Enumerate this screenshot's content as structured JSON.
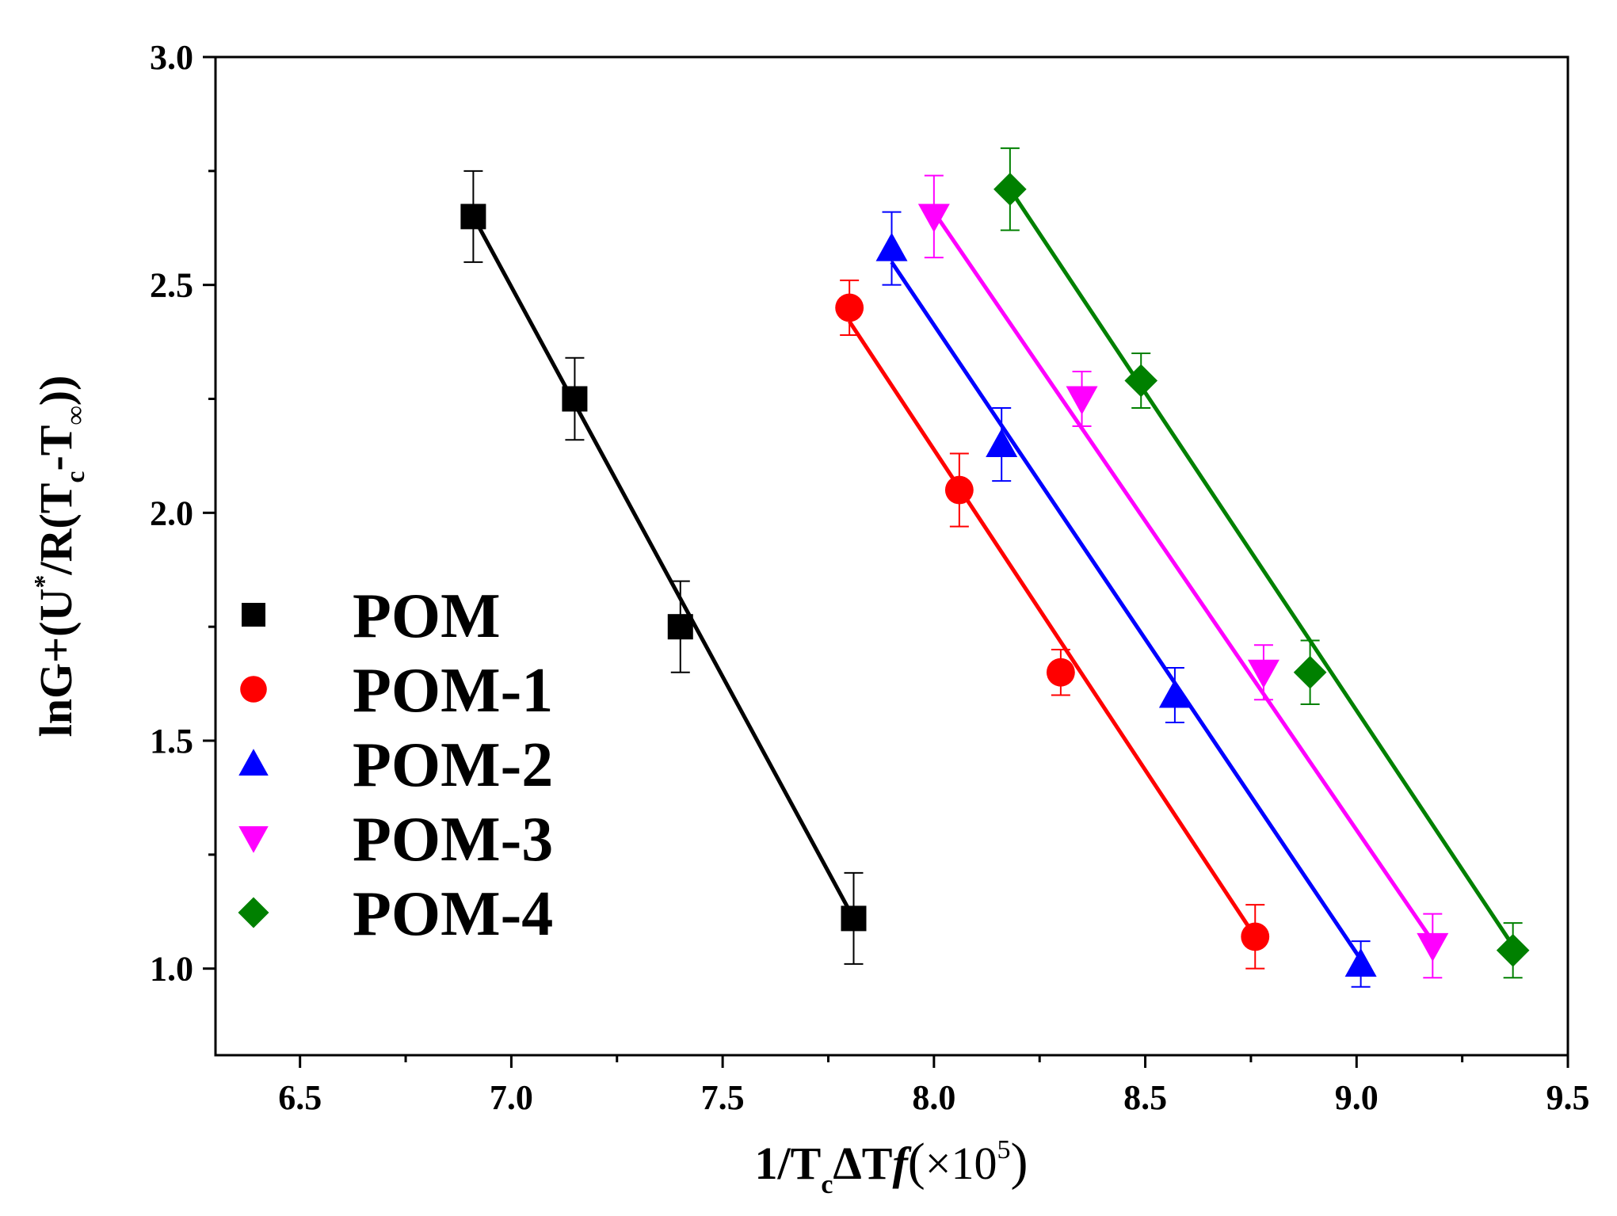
{
  "chart_data": {
    "type": "scatter",
    "xlabel": {
      "main": "1/T",
      "sub": "c",
      "mid": "ΔT",
      "italic": "f",
      "open": "(",
      "times": "×10",
      "exp": "5",
      "close": ")"
    },
    "ylabel": {
      "p1": "lnG+(U",
      "sup": "*",
      "p2": "/R(T",
      "sub1": "c",
      "p3": "-T",
      "sub2": "∞",
      "p4": "))"
    },
    "xlim": [
      6.3,
      9.5
    ],
    "ylim": [
      0.81,
      3.0
    ],
    "xticks": [
      6.5,
      7.0,
      7.5,
      8.0,
      8.5,
      9.0,
      9.5
    ],
    "xtick_labels": [
      "6.5",
      "7.0",
      "7.5",
      "8.0",
      "8.5",
      "9.0",
      "9.5"
    ],
    "yticks": [
      1.0,
      1.5,
      2.0,
      2.5,
      3.0
    ],
    "ytick_labels": [
      "1.0",
      "1.5",
      "2.0",
      "2.5",
      "3.0"
    ],
    "legend_position": "bottom-left",
    "series": [
      {
        "name": "POM",
        "color": "#000000",
        "marker": "square",
        "x": [
          6.91,
          7.15,
          7.4,
          7.81
        ],
        "y": [
          2.65,
          2.25,
          1.75,
          1.11
        ],
        "err": [
          0.1,
          0.09,
          0.1,
          0.1
        ],
        "fit": [
          [
            6.91,
            2.65
          ],
          [
            7.81,
            1.11
          ]
        ]
      },
      {
        "name": "POM-1",
        "color": "#ff0000",
        "marker": "circle",
        "x": [
          7.8,
          8.06,
          8.3,
          8.76
        ],
        "y": [
          2.45,
          2.05,
          1.65,
          1.07
        ],
        "err": [
          0.06,
          0.08,
          0.05,
          0.07
        ],
        "fit": [
          [
            7.8,
            2.42
          ],
          [
            8.76,
            1.07
          ]
        ]
      },
      {
        "name": "POM-2",
        "color": "#0000ff",
        "marker": "triangle-up",
        "x": [
          7.9,
          8.16,
          8.57,
          9.01
        ],
        "y": [
          2.58,
          2.15,
          1.6,
          1.01
        ],
        "err": [
          0.08,
          0.08,
          0.06,
          0.05
        ],
        "fit": [
          [
            7.9,
            2.55
          ],
          [
            9.01,
            1.02
          ]
        ]
      },
      {
        "name": "POM-3",
        "color": "#ff00ff",
        "marker": "triangle-down",
        "x": [
          8.0,
          8.35,
          8.78,
          9.18
        ],
        "y": [
          2.65,
          2.25,
          1.65,
          1.05
        ],
        "err": [
          0.09,
          0.06,
          0.06,
          0.07
        ],
        "fit": [
          [
            8.0,
            2.66
          ],
          [
            9.18,
            1.06
          ]
        ]
      },
      {
        "name": "POM-4",
        "color": "#008000",
        "marker": "diamond",
        "x": [
          8.18,
          8.49,
          8.89,
          9.37
        ],
        "y": [
          2.71,
          2.29,
          1.65,
          1.04
        ],
        "err": [
          0.09,
          0.06,
          0.07,
          0.06
        ],
        "fit": [
          [
            8.18,
            2.71
          ],
          [
            9.37,
            1.05
          ]
        ]
      }
    ]
  }
}
